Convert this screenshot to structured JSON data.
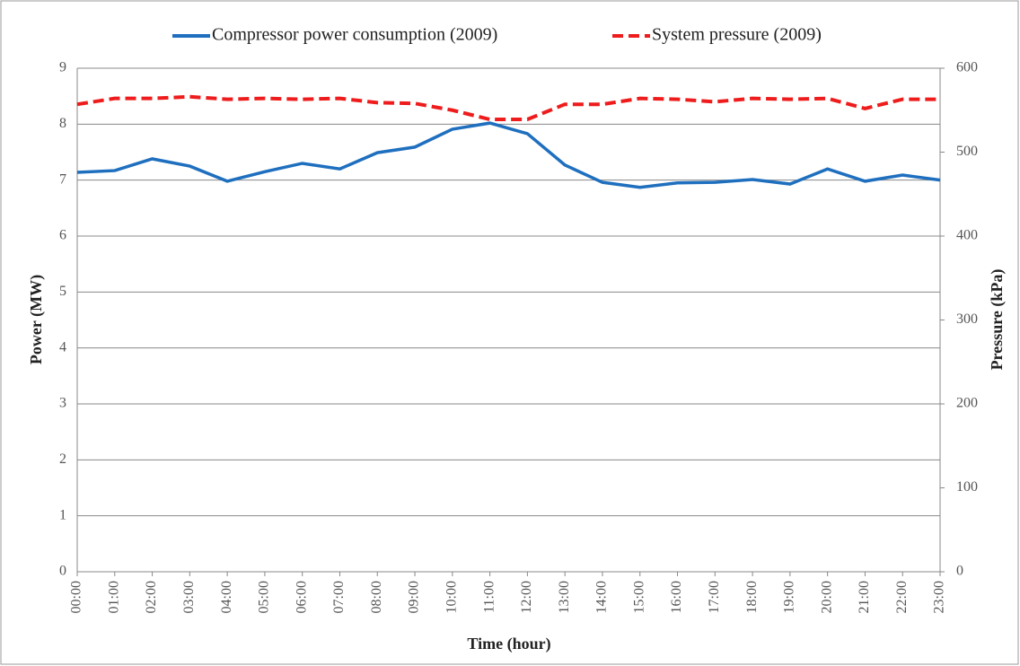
{
  "chart_data": {
    "type": "line",
    "xlabel": "Time (hour)",
    "ylabel": "Power (MW)",
    "y2label": "Pressure (kPa)",
    "categories": [
      "00:00",
      "01:00",
      "02:00",
      "03:00",
      "04:00",
      "05:00",
      "06:00",
      "07:00",
      "08:00",
      "09:00",
      "10:00",
      "11:00",
      "12:00",
      "13:00",
      "14:00",
      "15:00",
      "16:00",
      "17:00",
      "18:00",
      "19:00",
      "20:00",
      "21:00",
      "22:00",
      "23:00"
    ],
    "series": [
      {
        "name": "Compressor power consumption (2009)",
        "color": "#1f6fbf",
        "dash": "solid",
        "values": [
          7.14,
          7.17,
          7.38,
          7.25,
          6.98,
          7.15,
          7.3,
          7.2,
          7.49,
          7.59,
          7.91,
          8.02,
          7.83,
          7.27,
          6.96,
          6.87,
          6.95,
          6.96,
          7.01,
          6.93,
          7.2,
          6.98,
          7.09,
          7.0
        ]
      },
      {
        "name": "System pressure (2009)",
        "color": "#ee1c1c",
        "dash": "dashed",
        "axis": "y2",
        "values": [
          557,
          564,
          564,
          566,
          563,
          564,
          563,
          564,
          559,
          558,
          550,
          539,
          539,
          557,
          557,
          564,
          563,
          560,
          564,
          563,
          564,
          552,
          563,
          563
        ]
      }
    ],
    "ylim": [
      0,
      9
    ],
    "yticks": [
      0,
      1,
      2,
      3,
      4,
      5,
      6,
      7,
      8,
      9
    ],
    "y2lim": [
      0,
      600
    ],
    "y2ticks": [
      0,
      100,
      200,
      300,
      400,
      500,
      600
    ],
    "grid": true,
    "legend": "top"
  }
}
